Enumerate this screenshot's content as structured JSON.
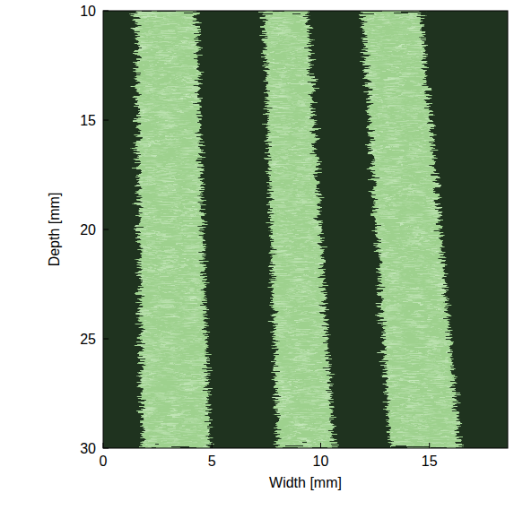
{
  "chart_data": {
    "type": "image",
    "x_label": "Width [mm]",
    "y_label": "Depth [mm]",
    "xlim": [
      0,
      18.6
    ],
    "ylim": [
      30,
      10
    ],
    "xticks": [
      0,
      5,
      10,
      15
    ],
    "yticks": [
      10,
      15,
      20,
      25,
      30
    ],
    "colors": [
      "#1f331f",
      "#9ed18e"
    ],
    "bands": [
      {
        "depth": [
          10,
          30
        ],
        "left": [
          1.5,
          1.8
        ],
        "right": [
          4.3,
          4.9
        ]
      },
      {
        "depth": [
          10,
          30
        ],
        "left": [
          7.4,
          8.0
        ],
        "right": [
          9.4,
          10.6
        ]
      },
      {
        "depth": [
          10,
          30
        ],
        "left": [
          11.9,
          13.2
        ],
        "right": [
          14.6,
          16.4
        ]
      }
    ]
  }
}
